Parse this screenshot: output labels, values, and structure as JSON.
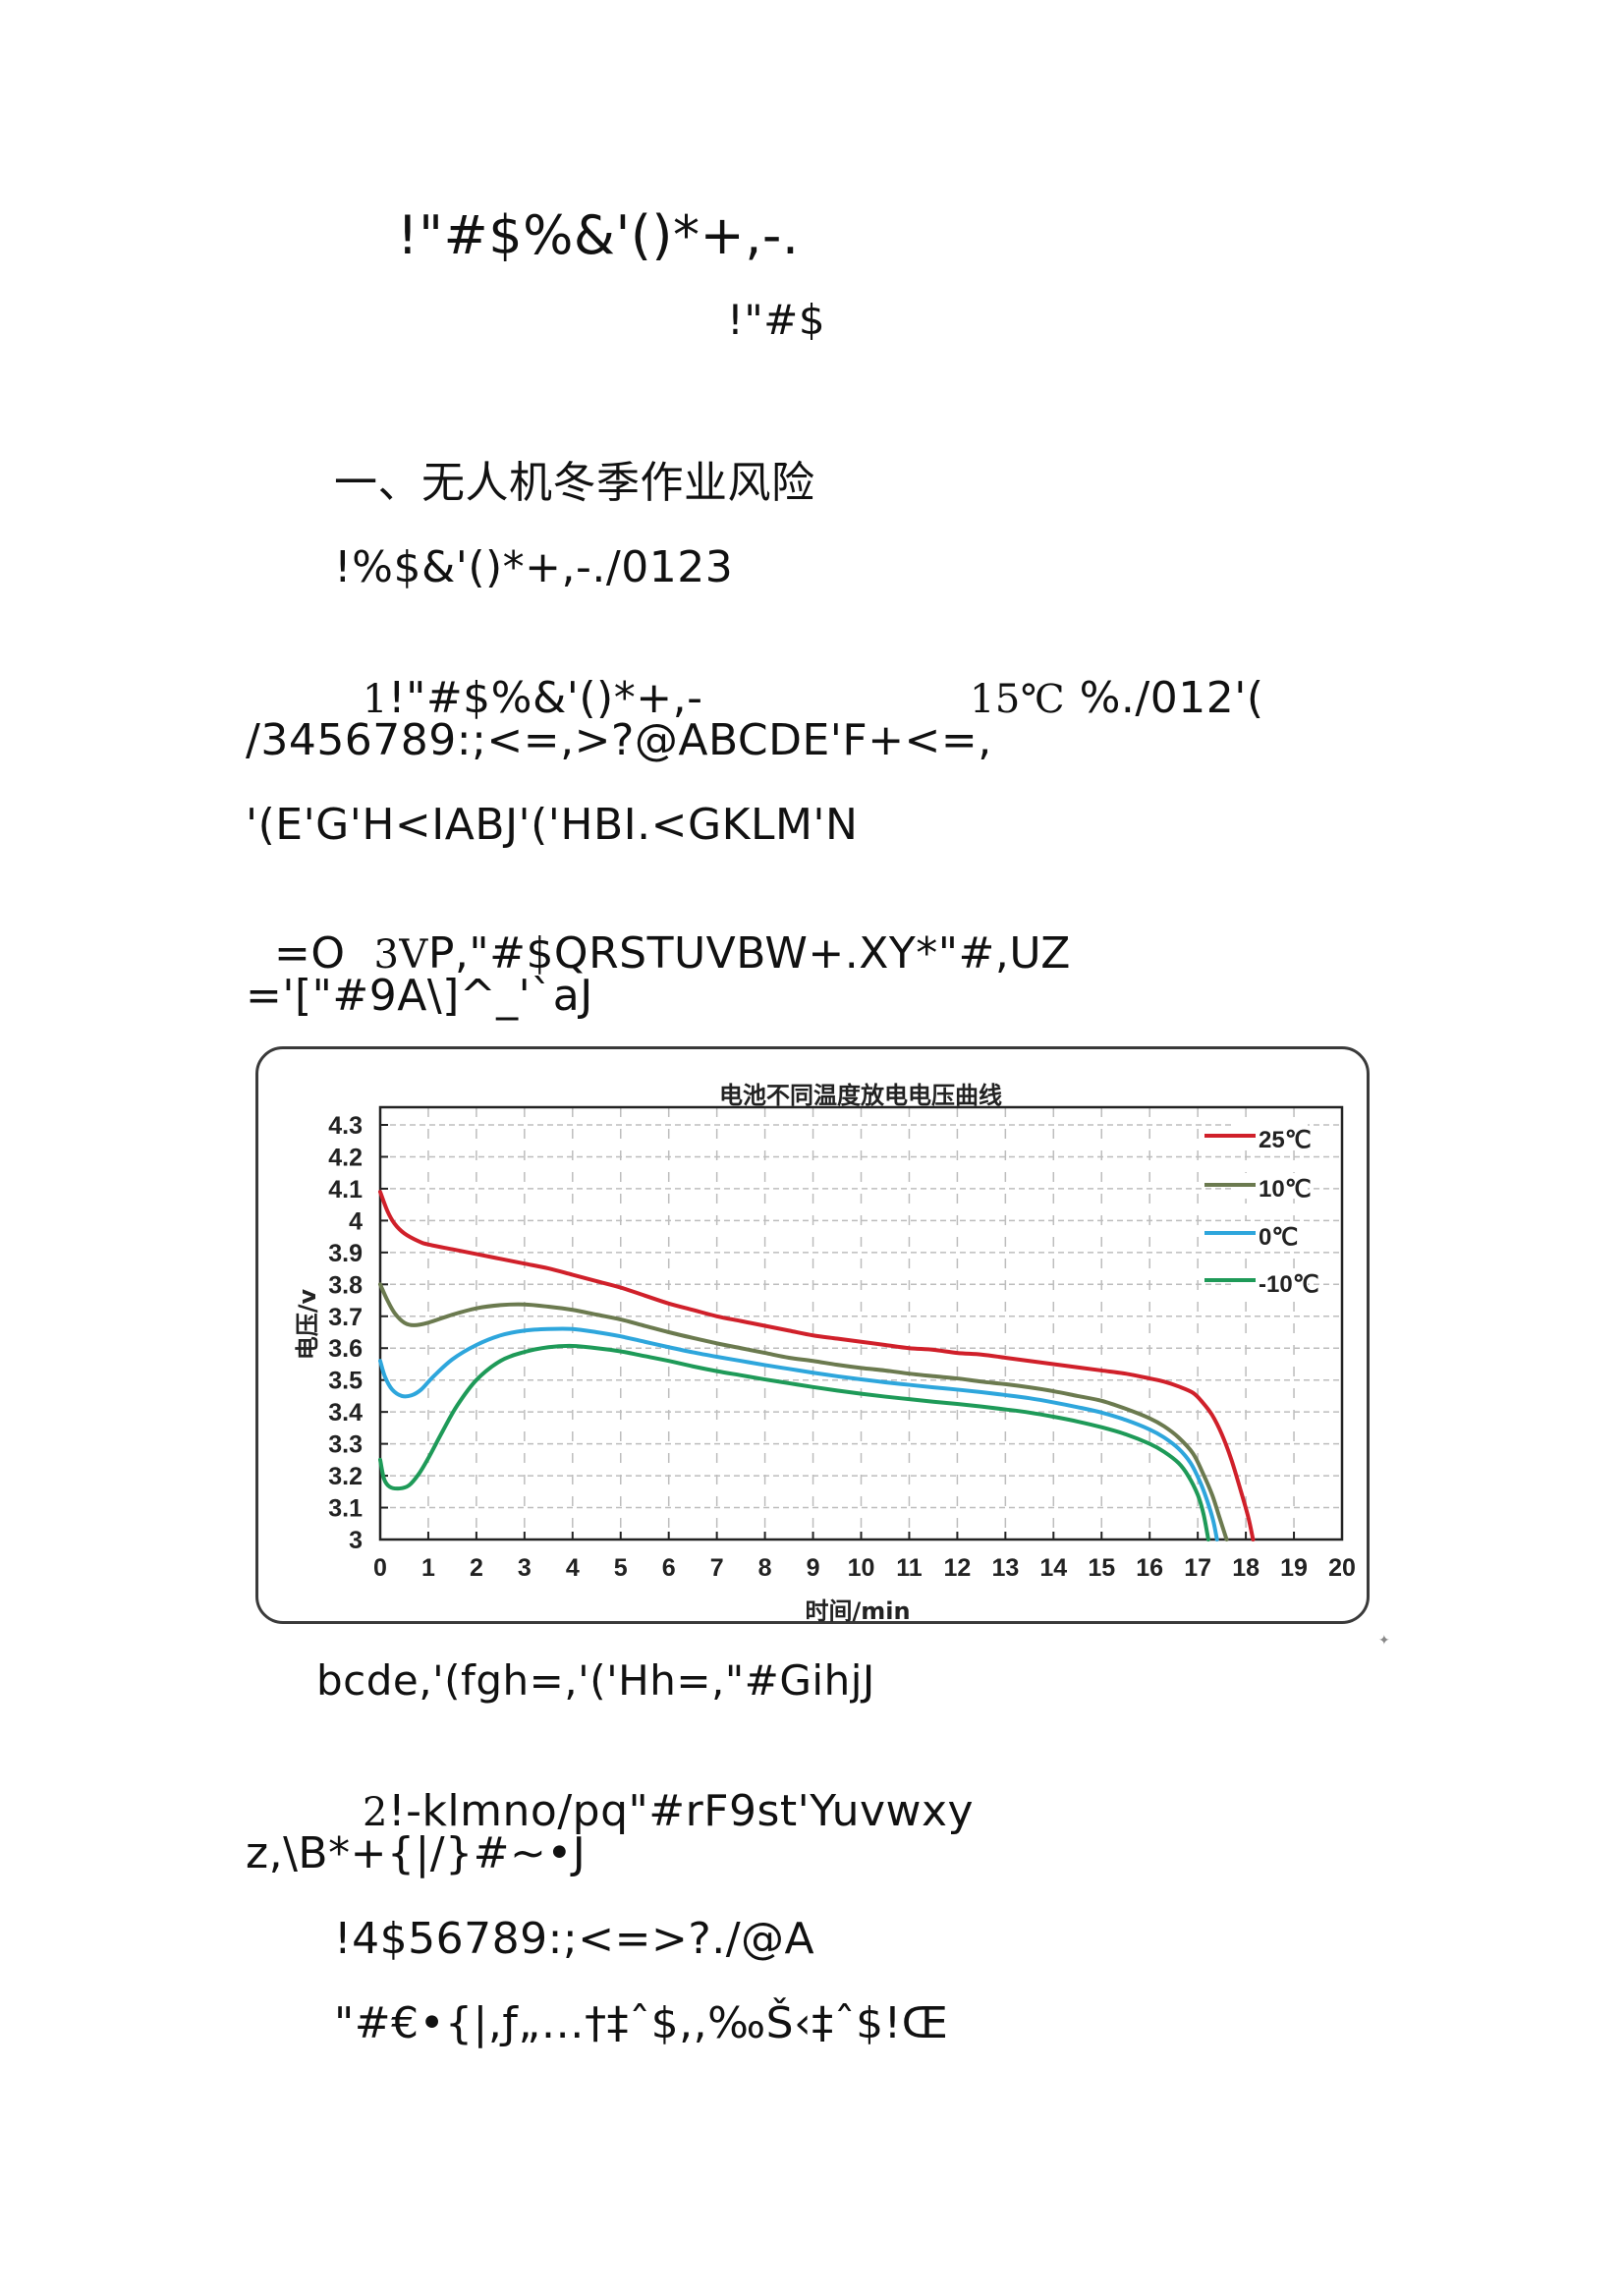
{
  "document": {
    "title_line": "!\"#$%&'()*+,-.",
    "subtitle_line": "!\"#$",
    "section_heading": "一、无人机冬季作业风险",
    "paragraphs": [
      {
        "id": "p1",
        "text": "!%$&'()*+,-./0123"
      },
      {
        "id": "p2a_prefix",
        "text": "1"
      },
      {
        "id": "p2a",
        "text": "!\"#$%&'()*+,-"
      },
      {
        "id": "p2b_prefix",
        "text": "15℃"
      },
      {
        "id": "p2b",
        "text": " %./012'("
      },
      {
        "id": "p3",
        "text": "/3456789:;<=,>?@ABCDE'F+<=,"
      },
      {
        "id": "p4",
        "text": "'(E'G'H<IABJ'('HBI.<GKLM'N"
      },
      {
        "id": "p5a",
        "text": "=O  "
      },
      {
        "id": "p5b",
        "text": "3V"
      },
      {
        "id": "p5c",
        "text": "P,\"#$QRSTUVBW+.XY*\"#,UZ"
      },
      {
        "id": "p6",
        "text": "='[\"#9A\\]^_'`aJ"
      },
      {
        "id": "caption",
        "text": "bcde,'(fgh=,'('Hh=,\"#GihjJ"
      },
      {
        "id": "p7_prefix",
        "text": "2"
      },
      {
        "id": "p7",
        "text": "!-klmno/pq\"#rF9st'Yuvwxy"
      },
      {
        "id": "p8",
        "text": "z,\\B*+{|/}#~•J"
      },
      {
        "id": "p9",
        "text": "!4$56789:;<=>?./@A"
      },
      {
        "id": "p10",
        "text": "\"#€•{|,ƒ„…†‡ˆ$,,‰Š‹‡ˆ$!Œ"
      }
    ]
  },
  "chart_data": {
    "type": "line",
    "title": "电池不同温度放电电压曲线",
    "xlabel": "时间/min",
    "ylabel": "电压/v",
    "xlim": [
      0,
      20
    ],
    "ylim": [
      3.0,
      4.3
    ],
    "x_ticks": [
      0,
      1,
      2,
      3,
      4,
      5,
      6,
      7,
      8,
      9,
      10,
      11,
      12,
      13,
      14,
      15,
      16,
      17,
      18,
      19,
      20
    ],
    "y_ticks": [
      "3",
      "3.1",
      "3.2",
      "3.3",
      "3.4",
      "3.5",
      "3.6",
      "3.7",
      "3.8",
      "3.9",
      "4",
      "4.1",
      "4.2",
      "4.3"
    ],
    "grid": true,
    "legend_position": "upper right (inside plot)",
    "series": [
      {
        "name": "25℃",
        "color": "#d0202a",
        "points": [
          [
            0,
            4.09
          ],
          [
            0.15,
            4.03
          ],
          [
            0.3,
            3.99
          ],
          [
            0.5,
            3.96
          ],
          [
            0.8,
            3.935
          ],
          [
            1,
            3.925
          ],
          [
            1.5,
            3.91
          ],
          [
            2,
            3.895
          ],
          [
            2.5,
            3.88
          ],
          [
            3,
            3.865
          ],
          [
            3.5,
            3.85
          ],
          [
            4,
            3.83
          ],
          [
            4.5,
            3.81
          ],
          [
            5,
            3.79
          ],
          [
            5.5,
            3.765
          ],
          [
            6,
            3.74
          ],
          [
            6.5,
            3.72
          ],
          [
            7,
            3.7
          ],
          [
            7.5,
            3.685
          ],
          [
            8,
            3.67
          ],
          [
            8.5,
            3.655
          ],
          [
            9,
            3.64
          ],
          [
            9.5,
            3.63
          ],
          [
            10,
            3.62
          ],
          [
            10.5,
            3.61
          ],
          [
            11,
            3.6
          ],
          [
            11.5,
            3.595
          ],
          [
            12,
            3.585
          ],
          [
            12.5,
            3.58
          ],
          [
            13,
            3.57
          ],
          [
            13.5,
            3.56
          ],
          [
            14,
            3.55
          ],
          [
            14.5,
            3.54
          ],
          [
            15,
            3.53
          ],
          [
            15.5,
            3.52
          ],
          [
            16,
            3.505
          ],
          [
            16.3,
            3.495
          ],
          [
            16.6,
            3.48
          ],
          [
            16.9,
            3.46
          ],
          [
            17.1,
            3.43
          ],
          [
            17.3,
            3.39
          ],
          [
            17.5,
            3.33
          ],
          [
            17.7,
            3.25
          ],
          [
            17.9,
            3.15
          ],
          [
            18.05,
            3.07
          ],
          [
            18.15,
            3.0
          ]
        ]
      },
      {
        "name": "10℃",
        "color": "#6b7a4f",
        "points": [
          [
            0,
            3.8
          ],
          [
            0.15,
            3.75
          ],
          [
            0.3,
            3.71
          ],
          [
            0.5,
            3.68
          ],
          [
            0.7,
            3.672
          ],
          [
            1,
            3.68
          ],
          [
            1.5,
            3.705
          ],
          [
            2,
            3.725
          ],
          [
            2.5,
            3.735
          ],
          [
            3,
            3.737
          ],
          [
            3.5,
            3.73
          ],
          [
            4,
            3.72
          ],
          [
            4.5,
            3.705
          ],
          [
            5,
            3.69
          ],
          [
            5.5,
            3.67
          ],
          [
            6,
            3.65
          ],
          [
            6.5,
            3.632
          ],
          [
            7,
            3.615
          ],
          [
            7.5,
            3.6
          ],
          [
            8,
            3.585
          ],
          [
            8.5,
            3.57
          ],
          [
            9,
            3.56
          ],
          [
            9.5,
            3.548
          ],
          [
            10,
            3.538
          ],
          [
            10.5,
            3.53
          ],
          [
            11,
            3.52
          ],
          [
            11.5,
            3.512
          ],
          [
            12,
            3.505
          ],
          [
            12.5,
            3.495
          ],
          [
            13,
            3.487
          ],
          [
            13.5,
            3.477
          ],
          [
            14,
            3.465
          ],
          [
            14.5,
            3.45
          ],
          [
            15,
            3.435
          ],
          [
            15.5,
            3.41
          ],
          [
            16,
            3.38
          ],
          [
            16.3,
            3.355
          ],
          [
            16.6,
            3.32
          ],
          [
            16.9,
            3.27
          ],
          [
            17.1,
            3.21
          ],
          [
            17.3,
            3.14
          ],
          [
            17.45,
            3.07
          ],
          [
            17.6,
            3.0
          ]
        ]
      },
      {
        "name": "0℃",
        "color": "#2ea6dc",
        "points": [
          [
            0,
            3.56
          ],
          [
            0.1,
            3.51
          ],
          [
            0.25,
            3.47
          ],
          [
            0.45,
            3.45
          ],
          [
            0.65,
            3.452
          ],
          [
            0.85,
            3.47
          ],
          [
            1.1,
            3.51
          ],
          [
            1.5,
            3.565
          ],
          [
            2,
            3.61
          ],
          [
            2.5,
            3.64
          ],
          [
            3,
            3.655
          ],
          [
            3.5,
            3.66
          ],
          [
            4,
            3.66
          ],
          [
            4.5,
            3.65
          ],
          [
            5,
            3.637
          ],
          [
            5.5,
            3.62
          ],
          [
            6,
            3.603
          ],
          [
            6.5,
            3.587
          ],
          [
            7,
            3.573
          ],
          [
            7.5,
            3.56
          ],
          [
            8,
            3.547
          ],
          [
            8.5,
            3.535
          ],
          [
            9,
            3.523
          ],
          [
            9.5,
            3.512
          ],
          [
            10,
            3.502
          ],
          [
            10.5,
            3.493
          ],
          [
            11,
            3.485
          ],
          [
            11.5,
            3.477
          ],
          [
            12,
            3.47
          ],
          [
            12.5,
            3.462
          ],
          [
            13,
            3.453
          ],
          [
            13.5,
            3.443
          ],
          [
            14,
            3.43
          ],
          [
            14.5,
            3.415
          ],
          [
            15,
            3.398
          ],
          [
            15.5,
            3.375
          ],
          [
            16,
            3.345
          ],
          [
            16.3,
            3.32
          ],
          [
            16.6,
            3.285
          ],
          [
            16.85,
            3.24
          ],
          [
            17.05,
            3.18
          ],
          [
            17.2,
            3.12
          ],
          [
            17.32,
            3.06
          ],
          [
            17.4,
            3.0
          ]
        ]
      },
      {
        "name": "-10℃",
        "color": "#1e9a58",
        "points": [
          [
            0,
            3.25
          ],
          [
            0.08,
            3.19
          ],
          [
            0.2,
            3.165
          ],
          [
            0.4,
            3.16
          ],
          [
            0.6,
            3.17
          ],
          [
            0.8,
            3.205
          ],
          [
            1,
            3.255
          ],
          [
            1.3,
            3.34
          ],
          [
            1.6,
            3.42
          ],
          [
            2,
            3.5
          ],
          [
            2.5,
            3.56
          ],
          [
            3,
            3.588
          ],
          [
            3.5,
            3.603
          ],
          [
            4,
            3.607
          ],
          [
            4.5,
            3.6
          ],
          [
            5,
            3.59
          ],
          [
            5.5,
            3.575
          ],
          [
            6,
            3.56
          ],
          [
            6.5,
            3.543
          ],
          [
            7,
            3.528
          ],
          [
            7.5,
            3.515
          ],
          [
            8,
            3.502
          ],
          [
            8.5,
            3.49
          ],
          [
            9,
            3.478
          ],
          [
            9.5,
            3.467
          ],
          [
            10,
            3.457
          ],
          [
            10.5,
            3.448
          ],
          [
            11,
            3.44
          ],
          [
            11.5,
            3.432
          ],
          [
            12,
            3.425
          ],
          [
            12.5,
            3.417
          ],
          [
            13,
            3.408
          ],
          [
            13.5,
            3.398
          ],
          [
            14,
            3.385
          ],
          [
            14.5,
            3.37
          ],
          [
            15,
            3.352
          ],
          [
            15.5,
            3.33
          ],
          [
            16,
            3.3
          ],
          [
            16.3,
            3.275
          ],
          [
            16.6,
            3.24
          ],
          [
            16.8,
            3.2
          ],
          [
            17.0,
            3.14
          ],
          [
            17.12,
            3.08
          ],
          [
            17.22,
            3.0
          ]
        ]
      }
    ]
  }
}
